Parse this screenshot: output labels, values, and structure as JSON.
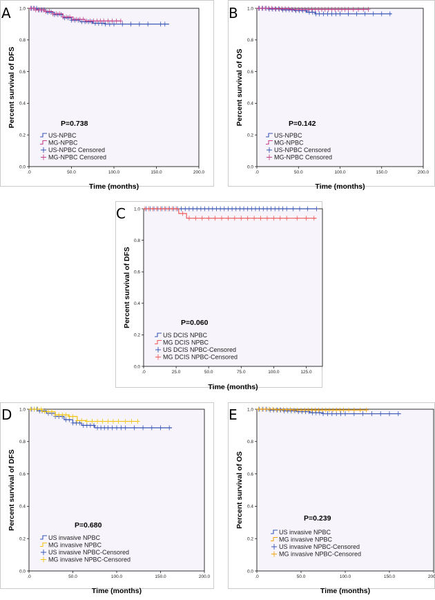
{
  "figure": {
    "title": ""
  },
  "colors": {
    "plot_bg": "#f7f5fb",
    "axis": "#000000",
    "us": "#3653b5",
    "mg_pink": "#c2408a",
    "mg_red": "#ee5a5a",
    "mg_yellow": "#f1c40f"
  },
  "chart_data": [
    {
      "panel": "A",
      "type": "line",
      "subtype": "kaplan-meier",
      "ylabel": "Percent survival of DFS",
      "xlabel": "Time (months)",
      "xlim": [
        0,
        200
      ],
      "ylim": [
        0,
        1
      ],
      "xticks": [
        ".0",
        "50.0",
        "100.0",
        "150.0",
        "200.0"
      ],
      "yticks": [
        "0.0",
        "0.2",
        "0.4",
        "0.6",
        "0.8",
        "1.0"
      ],
      "pvalue": "P=0.738",
      "legend": [
        "US-NPBC",
        "MG-NPBC",
        "US-NPBC Censored",
        "MG-NPBC Censored"
      ],
      "series": [
        {
          "name": "US-NPBC",
          "color": "#3653b5",
          "steps": [
            [
              0,
              1.0
            ],
            [
              10,
              0.99
            ],
            [
              20,
              0.975
            ],
            [
              30,
              0.96
            ],
            [
              40,
              0.94
            ],
            [
              50,
              0.925
            ],
            [
              60,
              0.915
            ],
            [
              75,
              0.905
            ],
            [
              90,
              0.9
            ],
            [
              165,
              0.9
            ]
          ],
          "censor": [
            3,
            6,
            9,
            12,
            15,
            18,
            22,
            26,
            30,
            34,
            38,
            42,
            46,
            50,
            54,
            58,
            62,
            66,
            70,
            74,
            78,
            82,
            86,
            90,
            95,
            100,
            110,
            120,
            130,
            140,
            155,
            160
          ]
        },
        {
          "name": "MG-NPBC",
          "color": "#c2408a",
          "steps": [
            [
              0,
              1.0
            ],
            [
              8,
              0.99
            ],
            [
              18,
              0.98
            ],
            [
              28,
              0.965
            ],
            [
              40,
              0.945
            ],
            [
              52,
              0.93
            ],
            [
              66,
              0.92
            ],
            [
              80,
              0.92
            ],
            [
              108,
              0.92
            ]
          ],
          "censor": [
            2,
            5,
            8,
            11,
            14,
            17,
            20,
            24,
            28,
            32,
            36,
            40,
            44,
            48,
            52,
            56,
            60,
            64,
            68,
            72,
            76,
            80,
            84,
            88,
            93,
            98,
            103,
            108
          ]
        }
      ]
    },
    {
      "panel": "B",
      "type": "line",
      "subtype": "kaplan-meier",
      "ylabel": "Percent survival of OS",
      "xlabel": "Time (months)",
      "xlim": [
        0,
        200
      ],
      "ylim": [
        0,
        1
      ],
      "xticks": [
        ".0",
        "50.0",
        "100.0",
        "150.0",
        "200.0"
      ],
      "yticks": [
        "0.0",
        "0.2",
        "0.4",
        "0.6",
        "0.8",
        "1.0"
      ],
      "pvalue": "P=0.142",
      "legend": [
        "US-NPBC",
        "MG-NPBC",
        "US-NPBC Censored",
        "MG-NPBC Censored"
      ],
      "series": [
        {
          "name": "US-NPBC",
          "color": "#3653b5",
          "steps": [
            [
              0,
              1.0
            ],
            [
              15,
              0.995
            ],
            [
              30,
              0.99
            ],
            [
              45,
              0.985
            ],
            [
              60,
              0.975
            ],
            [
              70,
              0.965
            ],
            [
              162,
              0.965
            ]
          ],
          "censor": [
            3,
            7,
            11,
            15,
            19,
            23,
            27,
            31,
            35,
            39,
            43,
            47,
            51,
            55,
            59,
            63,
            67,
            71,
            75,
            80,
            85,
            90,
            95,
            100,
            110,
            120,
            130,
            140,
            150,
            160
          ]
        },
        {
          "name": "MG-NPBC",
          "color": "#c2408a",
          "steps": [
            [
              0,
              1.0
            ],
            [
              20,
              0.997
            ],
            [
              40,
              0.993
            ],
            [
              134,
              0.993
            ]
          ],
          "censor": [
            2,
            6,
            10,
            14,
            18,
            22,
            26,
            30,
            34,
            38,
            42,
            46,
            50,
            54,
            58,
            62,
            66,
            70,
            74,
            78,
            82,
            86,
            90,
            94,
            98,
            102,
            106,
            110,
            116,
            122,
            128,
            134
          ]
        }
      ]
    },
    {
      "panel": "C",
      "type": "line",
      "subtype": "kaplan-meier",
      "ylabel": "Percent survival of DFS",
      "xlabel": "Time (months)",
      "xlim": [
        0,
        137.5
      ],
      "ylim": [
        0,
        1
      ],
      "xticks": [
        ".0",
        "25.0",
        "50.0",
        "75.0",
        "100.0",
        "125.0"
      ],
      "yticks": [
        "0.0",
        "0.2",
        "0.4",
        "0.6",
        "0.8",
        "1.0"
      ],
      "pvalue": "P=0.060",
      "legend": [
        "US DCIS NPBC",
        "MG DCIS NPBC",
        "US DCIS NPBC-Censored",
        "MG DCIS NPBC-Censored"
      ],
      "series": [
        {
          "name": "US DCIS NPBC",
          "color": "#3653b5",
          "steps": [
            [
              0,
              1.0
            ],
            [
              133,
              1.0
            ]
          ],
          "censor": [
            2,
            5,
            8,
            11,
            14,
            17,
            20,
            23,
            26,
            29,
            32,
            35,
            38,
            41,
            44,
            47,
            50,
            53,
            56,
            59,
            62,
            65,
            68,
            71,
            74,
            77,
            80,
            83,
            86,
            89,
            92,
            95,
            98,
            101,
            104,
            107,
            110,
            115,
            120,
            126,
            133
          ]
        },
        {
          "name": "MG DCIS NPBC",
          "color": "#ee5a5a",
          "steps": [
            [
              0,
              1.0
            ],
            [
              27,
              0.97
            ],
            [
              33,
              0.94
            ],
            [
              133,
              0.94
            ]
          ],
          "censor": [
            1,
            4,
            7,
            10,
            13,
            16,
            19,
            22,
            25,
            30,
            35,
            40,
            45,
            50,
            55,
            60,
            65,
            70,
            75,
            80,
            85,
            90,
            95,
            100,
            105,
            110,
            118,
            125,
            131
          ]
        }
      ]
    },
    {
      "panel": "D",
      "type": "line",
      "subtype": "kaplan-meier",
      "ylabel": "Percent survival of DFS",
      "xlabel": "Time (months)",
      "xlim": [
        0,
        200
      ],
      "ylim": [
        0,
        1
      ],
      "xticks": [
        ".0",
        "50.0",
        "100.0",
        "150.0",
        "200.0"
      ],
      "yticks": [
        "0.0",
        "0.2",
        "0.4",
        "0.6",
        "0.8",
        "1.0"
      ],
      "pvalue": "P=0.680",
      "legend": [
        "US invasive NPBC",
        "MG invasive NPBC",
        "US invasive NPBC-Censored",
        "MG invasive NPBC-Censored"
      ],
      "series": [
        {
          "name": "US invasive NPBC",
          "color": "#3653b5",
          "steps": [
            [
              0,
              1.0
            ],
            [
              10,
              0.99
            ],
            [
              20,
              0.975
            ],
            [
              30,
              0.955
            ],
            [
              40,
              0.935
            ],
            [
              50,
              0.915
            ],
            [
              60,
              0.9
            ],
            [
              75,
              0.885
            ],
            [
              163,
              0.885
            ]
          ],
          "censor": [
            3,
            6,
            9,
            12,
            15,
            18,
            22,
            26,
            30,
            34,
            38,
            42,
            46,
            50,
            54,
            58,
            62,
            66,
            70,
            74,
            78,
            82,
            86,
            90,
            95,
            100,
            105,
            110,
            120,
            130,
            140,
            150,
            160
          ]
        },
        {
          "name": "MG invasive NPBC",
          "color": "#f1c40f",
          "steps": [
            [
              0,
              1.0
            ],
            [
              15,
              0.985
            ],
            [
              30,
              0.965
            ],
            [
              45,
              0.955
            ],
            [
              55,
              0.93
            ],
            [
              65,
              0.925
            ],
            [
              124,
              0.925
            ]
          ],
          "censor": [
            2,
            6,
            10,
            14,
            18,
            22,
            26,
            30,
            34,
            38,
            42,
            46,
            50,
            55,
            60,
            66,
            72,
            78,
            84,
            90,
            96,
            102,
            110,
            117,
            124
          ]
        }
      ]
    },
    {
      "panel": "E",
      "type": "line",
      "subtype": "kaplan-meier",
      "ylabel": "Percent survival of OS",
      "xlabel": "Time (months)",
      "xlim": [
        0,
        200
      ],
      "ylim": [
        0,
        1
      ],
      "xticks": [
        ".0",
        "50.0",
        "100.0",
        "150.0",
        "200.0"
      ],
      "yticks": [
        "0.0",
        "0.2",
        "0.4",
        "0.6",
        "0.8",
        "1.0"
      ],
      "pvalue": "P=0.239",
      "legend": [
        "US invasive NPBC",
        "MG invasive NPBC",
        "US invasive NPBC-Censored",
        "MG invasive NPBC-Censored"
      ],
      "series": [
        {
          "name": "US invasive NPBC",
          "color": "#3653b5",
          "steps": [
            [
              0,
              1.0
            ],
            [
              15,
              0.995
            ],
            [
              30,
              0.99
            ],
            [
              45,
              0.985
            ],
            [
              60,
              0.978
            ],
            [
              75,
              0.972
            ],
            [
              163,
              0.972
            ]
          ],
          "censor": [
            3,
            7,
            11,
            15,
            19,
            23,
            27,
            31,
            35,
            39,
            43,
            47,
            51,
            55,
            59,
            63,
            67,
            71,
            75,
            80,
            85,
            90,
            95,
            100,
            110,
            120,
            130,
            140,
            150,
            160
          ]
        },
        {
          "name": "MG invasive NPBC",
          "color": "#f1a40f",
          "steps": [
            [
              0,
              1.0
            ],
            [
              20,
              0.997
            ],
            [
              40,
              0.995
            ],
            [
              124,
              0.995
            ]
          ],
          "censor": [
            2,
            6,
            10,
            14,
            18,
            22,
            26,
            30,
            34,
            38,
            42,
            46,
            50,
            54,
            58,
            62,
            66,
            70,
            74,
            78,
            82,
            86,
            90,
            94,
            98,
            104,
            110,
            117,
            124
          ]
        }
      ]
    }
  ]
}
